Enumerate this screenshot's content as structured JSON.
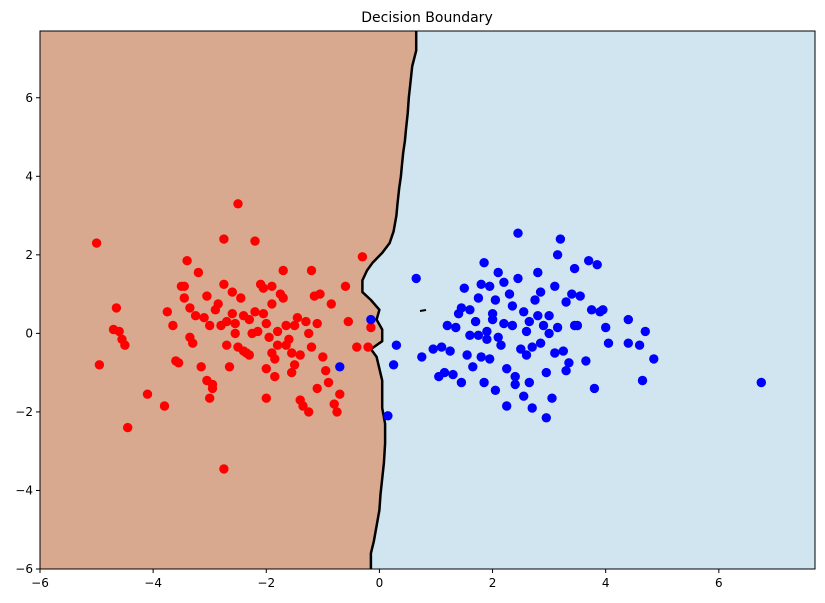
{
  "chart_data": {
    "type": "scatter",
    "title": "Decision Boundary",
    "xlabel": "",
    "ylabel": "",
    "xlim": [
      -6.0,
      7.7
    ],
    "ylim": [
      -6.0,
      7.7
    ],
    "x_ticks": [
      -6,
      -4,
      -2,
      0,
      2,
      4,
      6
    ],
    "y_ticks": [
      -6,
      -4,
      -2,
      0,
      2,
      4,
      6
    ],
    "grid": false,
    "legend": "none",
    "colors": {
      "region_left": "#d8a98f",
      "region_right": "#d1e5f0",
      "boundary": "#000000",
      "class_red": "#ff0000",
      "class_blue": "#0000ff"
    },
    "boundary": [
      [
        0.65,
        7.7
      ],
      [
        0.65,
        7.2
      ],
      [
        0.58,
        6.8
      ],
      [
        0.55,
        6.4
      ],
      [
        0.52,
        6.0
      ],
      [
        0.5,
        5.6
      ],
      [
        0.47,
        5.2
      ],
      [
        0.45,
        4.9
      ],
      [
        0.42,
        4.6
      ],
      [
        0.4,
        4.3
      ],
      [
        0.38,
        4.0
      ],
      [
        0.35,
        3.7
      ],
      [
        0.32,
        3.3
      ],
      [
        0.3,
        3.0
      ],
      [
        0.25,
        2.6
      ],
      [
        0.18,
        2.3
      ],
      [
        0.05,
        2.05
      ],
      [
        -0.12,
        1.8
      ],
      [
        -0.22,
        1.6
      ],
      [
        -0.3,
        1.35
      ],
      [
        -0.3,
        1.05
      ],
      [
        -0.15,
        0.85
      ],
      [
        0.0,
        0.6
      ],
      [
        -0.05,
        0.35
      ],
      [
        0.05,
        0.1
      ],
      [
        0.05,
        -0.2
      ],
      [
        -0.15,
        -0.4
      ],
      [
        -0.05,
        -0.6
      ],
      [
        0.0,
        -0.9
      ],
      [
        0.05,
        -1.2
      ],
      [
        0.05,
        -1.6
      ],
      [
        0.05,
        -1.9
      ],
      [
        0.1,
        -2.3
      ],
      [
        0.1,
        -2.8
      ],
      [
        0.08,
        -3.3
      ],
      [
        0.05,
        -3.7
      ],
      [
        0.02,
        -4.1
      ],
      [
        0.0,
        -4.5
      ],
      [
        -0.05,
        -4.9
      ],
      [
        -0.1,
        -5.3
      ],
      [
        -0.15,
        -5.6
      ],
      [
        -0.15,
        -6.0
      ]
    ],
    "series": [
      {
        "class": "red",
        "points": [
          [
            -5.0,
            2.3
          ],
          [
            -4.95,
            -0.8
          ],
          [
            -4.65,
            0.65
          ],
          [
            -4.7,
            0.1
          ],
          [
            -4.6,
            0.05
          ],
          [
            -4.55,
            -0.15
          ],
          [
            -4.5,
            -0.3
          ],
          [
            -4.45,
            -2.4
          ],
          [
            -4.1,
            -1.55
          ],
          [
            -3.8,
            -1.85
          ],
          [
            -3.75,
            0.55
          ],
          [
            -3.65,
            0.2
          ],
          [
            -3.6,
            -0.7
          ],
          [
            -3.55,
            -0.75
          ],
          [
            -3.5,
            1.2
          ],
          [
            -3.45,
            1.2
          ],
          [
            -3.4,
            1.85
          ],
          [
            -3.35,
            0.65
          ],
          [
            -3.45,
            0.9
          ],
          [
            -3.35,
            -0.1
          ],
          [
            -3.3,
            -0.25
          ],
          [
            -3.25,
            0.45
          ],
          [
            -3.2,
            1.55
          ],
          [
            -3.15,
            -0.85
          ],
          [
            -3.1,
            0.4
          ],
          [
            -3.05,
            0.95
          ],
          [
            -3.05,
            -1.2
          ],
          [
            -3.0,
            -1.65
          ],
          [
            -2.95,
            -1.3
          ],
          [
            -2.9,
            0.6
          ],
          [
            -2.85,
            0.75
          ],
          [
            -2.8,
            0.2
          ],
          [
            -2.75,
            2.4
          ],
          [
            -2.75,
            1.25
          ],
          [
            -2.7,
            -0.3
          ],
          [
            -2.65,
            -0.85
          ],
          [
            -2.6,
            1.05
          ],
          [
            -2.55,
            0.25
          ],
          [
            -2.5,
            -0.35
          ],
          [
            -2.55,
            0.0
          ],
          [
            -2.45,
            0.9
          ],
          [
            -2.4,
            0.45
          ],
          [
            -2.35,
            -0.5
          ],
          [
            -2.3,
            0.35
          ],
          [
            -2.25,
            0.0
          ],
          [
            -2.2,
            2.35
          ],
          [
            -2.15,
            0.05
          ],
          [
            -2.1,
            1.25
          ],
          [
            -2.05,
            1.15
          ],
          [
            -2.05,
            0.5
          ],
          [
            -2.0,
            0.25
          ],
          [
            -1.95,
            -0.1
          ],
          [
            -1.9,
            -0.5
          ],
          [
            -1.85,
            -0.65
          ],
          [
            -1.85,
            -1.1
          ],
          [
            -1.8,
            0.05
          ],
          [
            -1.75,
            1.0
          ],
          [
            -1.7,
            1.6
          ],
          [
            -1.65,
            0.2
          ],
          [
            -1.6,
            -0.15
          ],
          [
            -1.55,
            -0.5
          ],
          [
            -1.5,
            -0.8
          ],
          [
            -1.45,
            0.4
          ],
          [
            -1.4,
            -1.7
          ],
          [
            -1.35,
            -1.85
          ],
          [
            -1.3,
            0.3
          ],
          [
            -1.25,
            0.0
          ],
          [
            -1.2,
            -0.35
          ],
          [
            -1.15,
            0.95
          ],
          [
            -1.1,
            -1.4
          ],
          [
            -1.05,
            1.0
          ],
          [
            -1.0,
            -0.6
          ],
          [
            -0.95,
            -0.95
          ],
          [
            -0.9,
            -1.25
          ],
          [
            -0.85,
            0.75
          ],
          [
            -0.8,
            -1.8
          ],
          [
            -0.75,
            -2.0
          ],
          [
            -0.7,
            -1.55
          ],
          [
            -1.9,
            0.75
          ],
          [
            -2.0,
            -1.65
          ],
          [
            -2.5,
            3.3
          ],
          [
            -2.75,
            -3.45
          ],
          [
            -2.95,
            -1.4
          ],
          [
            -2.3,
            -0.55
          ],
          [
            -1.65,
            -0.3
          ],
          [
            -1.55,
            -1.0
          ],
          [
            -1.25,
            -2.0
          ],
          [
            -2.2,
            0.55
          ],
          [
            -1.2,
            1.6
          ],
          [
            -2.6,
            0.5
          ],
          [
            -2.0,
            -0.9
          ],
          [
            -1.7,
            0.9
          ],
          [
            -1.5,
            0.2
          ],
          [
            -2.7,
            0.3
          ],
          [
            -3.0,
            0.2
          ],
          [
            -1.9,
            1.2
          ],
          [
            -0.55,
            0.3
          ],
          [
            -0.6,
            1.2
          ],
          [
            -0.4,
            -0.35
          ],
          [
            -0.3,
            1.95
          ],
          [
            -0.2,
            -0.35
          ],
          [
            -0.15,
            0.15
          ],
          [
            -1.1,
            0.25
          ],
          [
            -1.4,
            -0.55
          ],
          [
            -2.4,
            -0.45
          ],
          [
            -1.8,
            -0.3
          ]
        ]
      },
      {
        "class": "blue",
        "points": [
          [
            -0.7,
            -0.85
          ],
          [
            -0.15,
            0.35
          ],
          [
            0.15,
            -2.1
          ],
          [
            0.25,
            -0.8
          ],
          [
            0.3,
            -0.3
          ],
          [
            0.65,
            1.4
          ],
          [
            0.75,
            -0.6
          ],
          [
            0.95,
            -0.4
          ],
          [
            1.05,
            -1.1
          ],
          [
            1.1,
            -0.35
          ],
          [
            1.15,
            -1.0
          ],
          [
            1.2,
            0.2
          ],
          [
            1.25,
            -0.45
          ],
          [
            1.3,
            -1.05
          ],
          [
            1.35,
            0.15
          ],
          [
            1.4,
            0.5
          ],
          [
            1.45,
            -1.25
          ],
          [
            1.5,
            1.15
          ],
          [
            1.55,
            -0.55
          ],
          [
            1.6,
            0.6
          ],
          [
            1.65,
            -0.85
          ],
          [
            1.7,
            0.3
          ],
          [
            1.75,
            -0.05
          ],
          [
            1.8,
            1.25
          ],
          [
            1.85,
            1.8
          ],
          [
            1.85,
            -1.25
          ],
          [
            1.9,
            0.05
          ],
          [
            1.95,
            -0.65
          ],
          [
            2.0,
            0.5
          ],
          [
            2.05,
            -1.45
          ],
          [
            2.1,
            1.55
          ],
          [
            2.15,
            -0.3
          ],
          [
            2.2,
            0.25
          ],
          [
            2.25,
            -1.85
          ],
          [
            2.3,
            1.0
          ],
          [
            2.35,
            0.7
          ],
          [
            2.4,
            -1.3
          ],
          [
            2.45,
            2.55
          ],
          [
            2.45,
            1.4
          ],
          [
            2.5,
            -0.4
          ],
          [
            2.55,
            0.55
          ],
          [
            2.6,
            -0.55
          ],
          [
            2.65,
            0.3
          ],
          [
            2.7,
            -1.9
          ],
          [
            2.75,
            0.85
          ],
          [
            2.8,
            1.55
          ],
          [
            2.85,
            -0.25
          ],
          [
            2.9,
            0.2
          ],
          [
            2.95,
            -1.0
          ],
          [
            3.0,
            0.45
          ],
          [
            3.05,
            -1.65
          ],
          [
            3.1,
            1.2
          ],
          [
            3.15,
            2.0
          ],
          [
            3.2,
            2.4
          ],
          [
            3.25,
            -0.45
          ],
          [
            3.3,
            0.8
          ],
          [
            3.35,
            -0.75
          ],
          [
            3.4,
            1.0
          ],
          [
            3.45,
            1.65
          ],
          [
            3.5,
            0.2
          ],
          [
            3.55,
            0.95
          ],
          [
            3.65,
            -0.7
          ],
          [
            3.7,
            1.85
          ],
          [
            3.75,
            0.6
          ],
          [
            3.8,
            -1.4
          ],
          [
            3.85,
            1.75
          ],
          [
            3.9,
            0.55
          ],
          [
            3.95,
            0.6
          ],
          [
            4.0,
            0.15
          ],
          [
            4.05,
            -0.25
          ],
          [
            4.4,
            -0.25
          ],
          [
            4.4,
            0.35
          ],
          [
            4.6,
            -0.3
          ],
          [
            4.65,
            -1.2
          ],
          [
            4.7,
            0.05
          ],
          [
            4.85,
            -0.65
          ],
          [
            6.75,
            -1.25
          ],
          [
            2.95,
            -2.15
          ],
          [
            2.0,
            0.35
          ],
          [
            1.9,
            -0.15
          ],
          [
            2.25,
            -0.9
          ],
          [
            2.6,
            0.05
          ],
          [
            2.85,
            1.05
          ],
          [
            3.1,
            -0.5
          ],
          [
            1.75,
            0.9
          ],
          [
            2.1,
            -0.1
          ],
          [
            2.4,
            -1.1
          ],
          [
            2.7,
            -0.35
          ],
          [
            3.0,
            0.0
          ],
          [
            3.3,
            -0.95
          ],
          [
            1.6,
            -0.05
          ],
          [
            2.2,
            1.3
          ],
          [
            2.55,
            -1.6
          ],
          [
            2.8,
            0.45
          ],
          [
            3.15,
            0.15
          ],
          [
            1.95,
            1.2
          ],
          [
            2.35,
            0.2
          ],
          [
            2.65,
            -1.25
          ],
          [
            1.45,
            0.65
          ],
          [
            2.05,
            0.85
          ],
          [
            1.8,
            -0.6
          ],
          [
            3.45,
            0.2
          ]
        ]
      }
    ]
  }
}
